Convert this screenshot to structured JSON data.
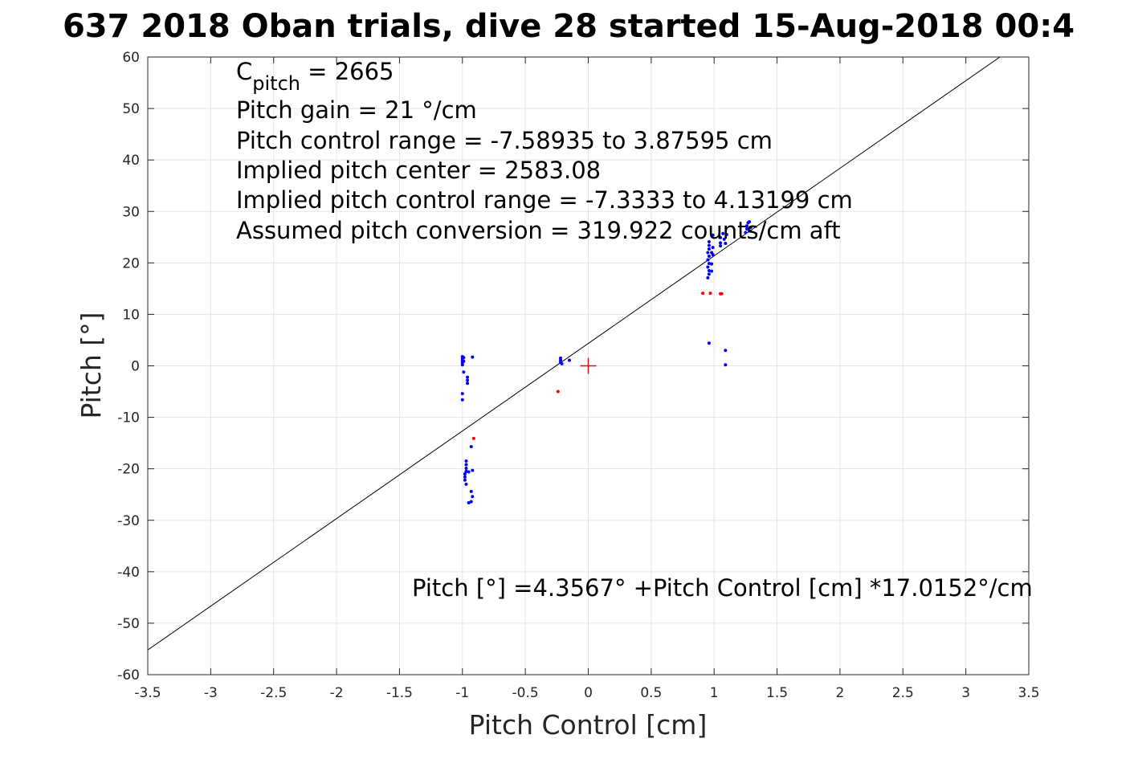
{
  "chart_data": {
    "type": "scatter",
    "title": "637 2018 Oban trials, dive 28 started 15-Aug-2018 00:4",
    "xlabel": "Pitch Control [cm]",
    "ylabel": "Pitch [°]",
    "xlim": [
      -3.5,
      3.5
    ],
    "ylim": [
      -60,
      60
    ],
    "x_ticks": [
      "-3.5",
      "-3",
      "-2.5",
      "-2",
      "-1.5",
      "-1",
      "-0.5",
      "0",
      "0.5",
      "1",
      "1.5",
      "2",
      "2.5",
      "3",
      "3.5"
    ],
    "y_ticks": [
      "60",
      "50",
      "40",
      "30",
      "20",
      "10",
      "0",
      "-10",
      "-20",
      "-30",
      "-40",
      "-50",
      "-60"
    ],
    "grid": true,
    "annotations": {
      "c_pitch_main": "C",
      "c_pitch_sub": "pitch",
      "c_pitch_value": " = 2665",
      "lines": [
        "Pitch gain = 21 °/cm",
        "Pitch control range = -7.58935 to 3.87595 cm",
        "Implied pitch center = 2583.08",
        "Implied pitch control range = -7.3333 to 4.13199 cm",
        "Assumed pitch conversion = 319.922 counts/cm aft"
      ],
      "fit_equation": "Pitch [°] =4.3567° +Pitch Control [cm] *17.0152°/cm"
    },
    "fit_line": {
      "intercept": 4.3567,
      "slope": 17.0152,
      "color": "#000000"
    },
    "center_marker": {
      "x": 0,
      "y": 0,
      "color": "#ff0000"
    },
    "series": [
      {
        "color": "#0000ff",
        "points": [
          [
            -1.0,
            1.8
          ],
          [
            -1.0,
            1.4
          ],
          [
            -1.0,
            1.0
          ],
          [
            -1.0,
            0.6
          ],
          [
            -1.0,
            0.2
          ],
          [
            -0.99,
            1.6
          ],
          [
            -0.99,
            0.9
          ],
          [
            -0.92,
            1.7
          ],
          [
            -0.99,
            -1.2
          ],
          [
            -0.96,
            -2.2
          ],
          [
            -0.96,
            -2.8
          ],
          [
            -0.96,
            -3.4
          ],
          [
            -1.0,
            -5.4
          ],
          [
            -1.0,
            -6.6
          ],
          [
            -0.93,
            -15.7
          ],
          [
            -0.97,
            -18.5
          ],
          [
            -0.97,
            -19.2
          ],
          [
            -0.97,
            -19.9
          ],
          [
            -0.97,
            -20.5
          ],
          [
            -0.98,
            -21.0
          ],
          [
            -0.98,
            -21.6
          ],
          [
            -0.98,
            -22.2
          ],
          [
            -0.97,
            -23.0
          ],
          [
            -0.95,
            -20.6
          ],
          [
            -0.92,
            -20.3
          ],
          [
            -0.93,
            -24.4
          ],
          [
            -0.92,
            -25.4
          ],
          [
            -0.93,
            -26.4
          ],
          [
            -0.95,
            -26.6
          ],
          [
            -0.22,
            1.5
          ],
          [
            -0.22,
            1.1
          ],
          [
            -0.22,
            0.7
          ],
          [
            -0.21,
            0.4
          ],
          [
            -0.15,
            1.1
          ],
          [
            0.96,
            24.1
          ],
          [
            0.96,
            23.4
          ],
          [
            0.96,
            22.7
          ],
          [
            0.95,
            22.0
          ],
          [
            0.96,
            21.3
          ],
          [
            0.95,
            20.6
          ],
          [
            0.96,
            19.9
          ],
          [
            0.95,
            19.2
          ],
          [
            0.96,
            18.5
          ],
          [
            0.96,
            17.8
          ],
          [
            0.95,
            17.1
          ],
          [
            0.99,
            25.4
          ],
          [
            0.99,
            23.0
          ],
          [
            0.98,
            22.0
          ],
          [
            0.99,
            21.6
          ],
          [
            0.98,
            19.8
          ],
          [
            0.98,
            18.4
          ],
          [
            1.05,
            24.9
          ],
          [
            1.05,
            23.9
          ],
          [
            1.05,
            23.3
          ],
          [
            1.07,
            25.7
          ],
          [
            1.08,
            24.6
          ],
          [
            1.09,
            23.8
          ],
          [
            1.1,
            25.5
          ],
          [
            1.26,
            27.2
          ],
          [
            1.26,
            26.6
          ],
          [
            1.27,
            27.8
          ],
          [
            1.28,
            28.0
          ],
          [
            1.29,
            26.9
          ],
          [
            1.25,
            25.9
          ],
          [
            1.28,
            26.2
          ],
          [
            0.96,
            4.4
          ],
          [
            1.09,
            3.0
          ],
          [
            1.09,
            0.2
          ]
        ]
      },
      {
        "color": "#ff0000",
        "points": [
          [
            -0.91,
            -14.1
          ],
          [
            -0.24,
            -5.0
          ],
          [
            0.91,
            14.1
          ],
          [
            0.97,
            14.1
          ],
          [
            1.05,
            14.0
          ],
          [
            1.06,
            14.0
          ]
        ]
      }
    ]
  }
}
